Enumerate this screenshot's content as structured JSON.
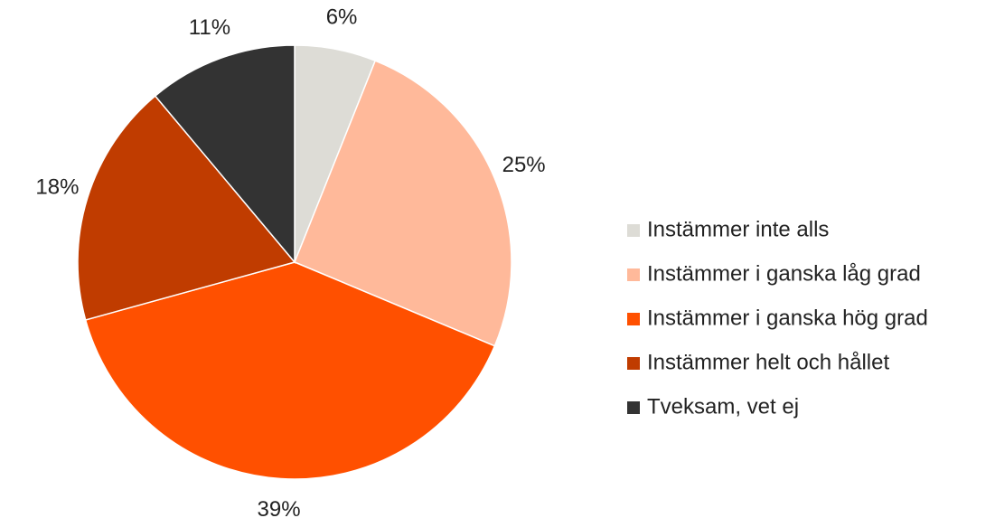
{
  "chart_data": {
    "type": "pie",
    "categories": [
      "Instämmer inte alls",
      "Instämmer i ganska låg grad",
      "Instämmer i ganska hög grad",
      "Instämmer helt och hållet",
      "Tveksam, vet ej"
    ],
    "values": [
      6,
      25,
      39,
      18,
      11
    ],
    "value_labels": [
      "6%",
      "25%",
      "39%",
      "18%",
      "11%"
    ],
    "colors": [
      "#dddcd6",
      "#ffb99a",
      "#ff5000",
      "#c03c00",
      "#333333"
    ],
    "legend": "right"
  }
}
